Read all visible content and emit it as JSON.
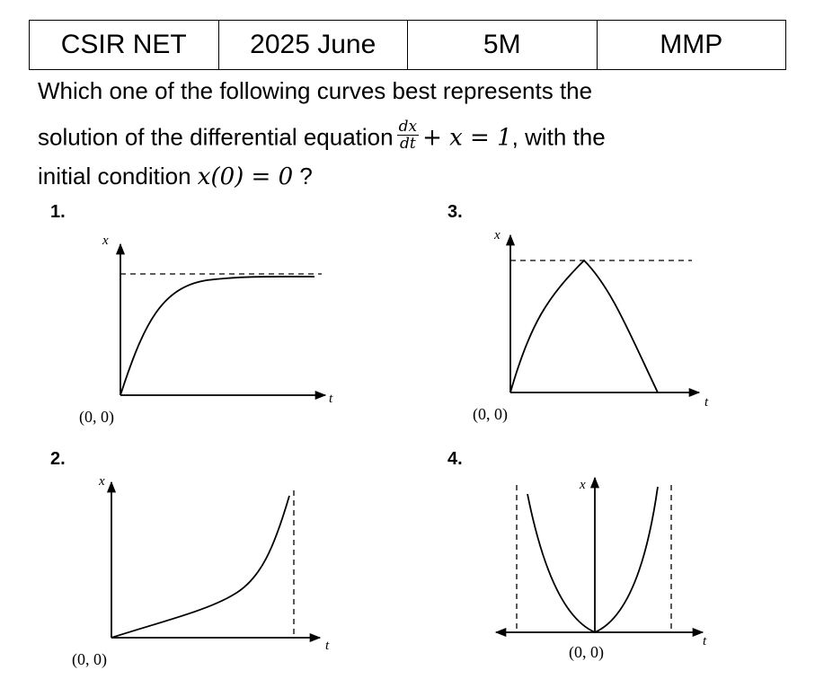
{
  "header": {
    "cells": [
      "CSIR NET",
      "2025 June",
      "5M",
      "MMP"
    ]
  },
  "question": {
    "line1": "Which one of the following curves best represents the",
    "line2_prefix": "solution of the differential equation",
    "frac_num": "dx",
    "frac_den": "dt",
    "eq_rest": "+ x = 1",
    "line2_suffix": ", with the",
    "line3_prefix": "initial condition",
    "condition": "x(0) = 0",
    "line3_suffix": " ?"
  },
  "options": [
    {
      "number": "1.",
      "x_axis": "t",
      "y_axis": "x",
      "origin": "(0, 0)"
    },
    {
      "number": "2.",
      "x_axis": "t",
      "y_axis": "x",
      "origin": "(0, 0)"
    },
    {
      "number": "3.",
      "x_axis": "t",
      "y_axis": "x",
      "origin": "(0, 0)"
    },
    {
      "number": "4.",
      "x_axis": "t",
      "y_axis": "x",
      "origin": "(0, 0)"
    }
  ]
}
